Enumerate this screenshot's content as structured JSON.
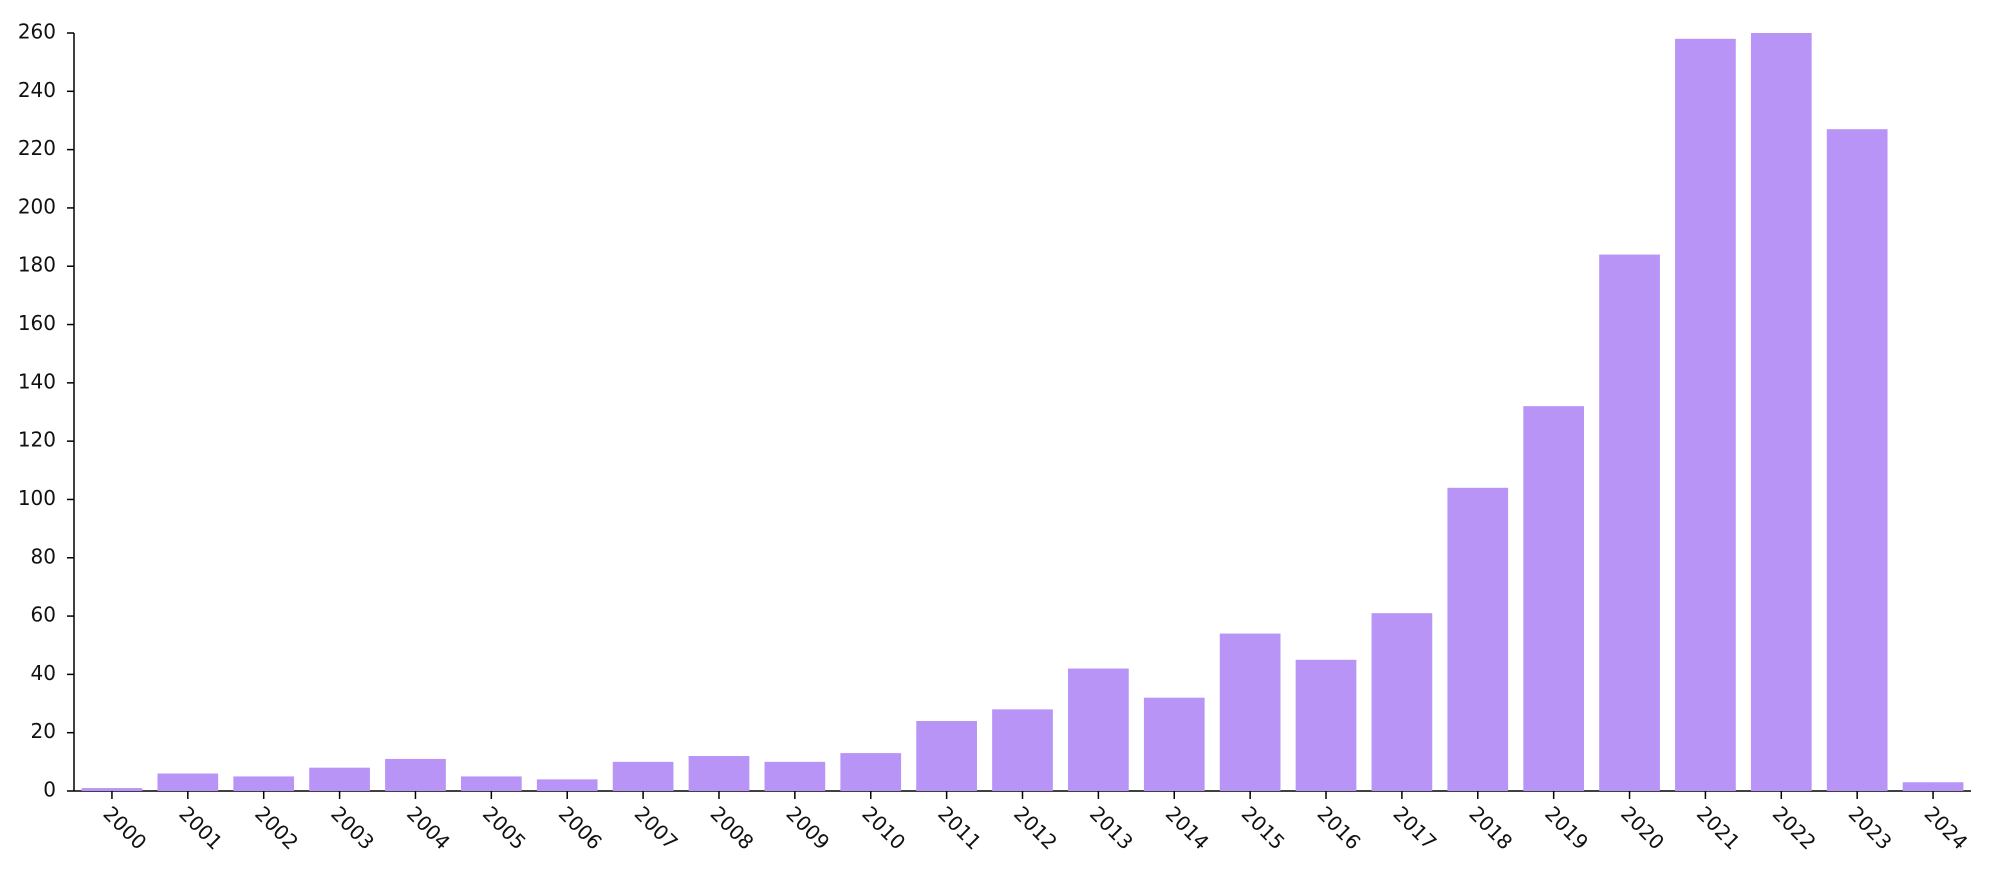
{
  "chart_data": {
    "type": "bar",
    "categories": [
      "2000",
      "2001",
      "2002",
      "2003",
      "2004",
      "2005",
      "2006",
      "2007",
      "2008",
      "2009",
      "2010",
      "2011",
      "2012",
      "2013",
      "2014",
      "2015",
      "2016",
      "2017",
      "2018",
      "2019",
      "2020",
      "2021",
      "2022",
      "2023",
      "2024"
    ],
    "values": [
      1,
      6,
      5,
      8,
      11,
      5,
      4,
      10,
      12,
      10,
      13,
      24,
      28,
      42,
      32,
      54,
      45,
      61,
      104,
      132,
      184,
      258,
      260,
      227,
      3
    ],
    "color": "#b794f6",
    "ylim": [
      0,
      260
    ],
    "yticks": [
      0,
      20,
      40,
      60,
      80,
      100,
      120,
      140,
      160,
      180,
      200,
      220,
      240,
      260
    ],
    "grid": false
  }
}
